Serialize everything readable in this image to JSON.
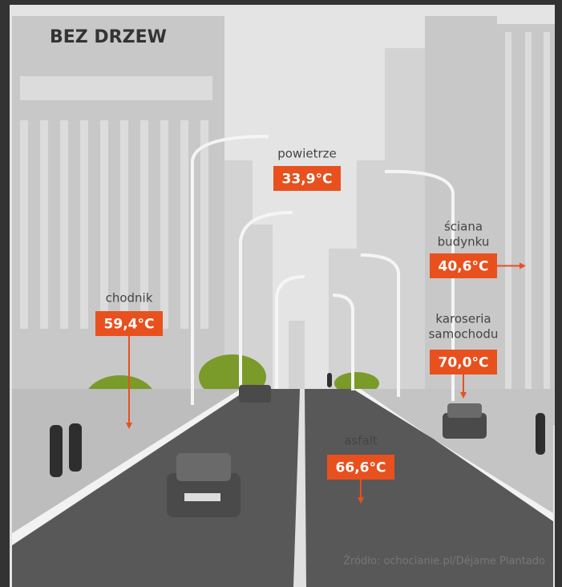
{
  "title": "BEZ DRZEW",
  "labels": [
    {
      "name": [
        "powietrze"
      ],
      "value": "33,9°C"
    },
    {
      "name": [
        "ściana",
        "budynku"
      ],
      "value": "40,6°C"
    },
    {
      "name": [
        "chodnik"
      ],
      "value": "59,4°C"
    },
    {
      "name": [
        "karoseria",
        "samochodu"
      ],
      "value": "70,0°C"
    },
    {
      "name": [
        "asfalt"
      ],
      "value": "66,6°C"
    }
  ],
  "source": "Źródło: ochocianie.pl/Déjame Plantado"
}
